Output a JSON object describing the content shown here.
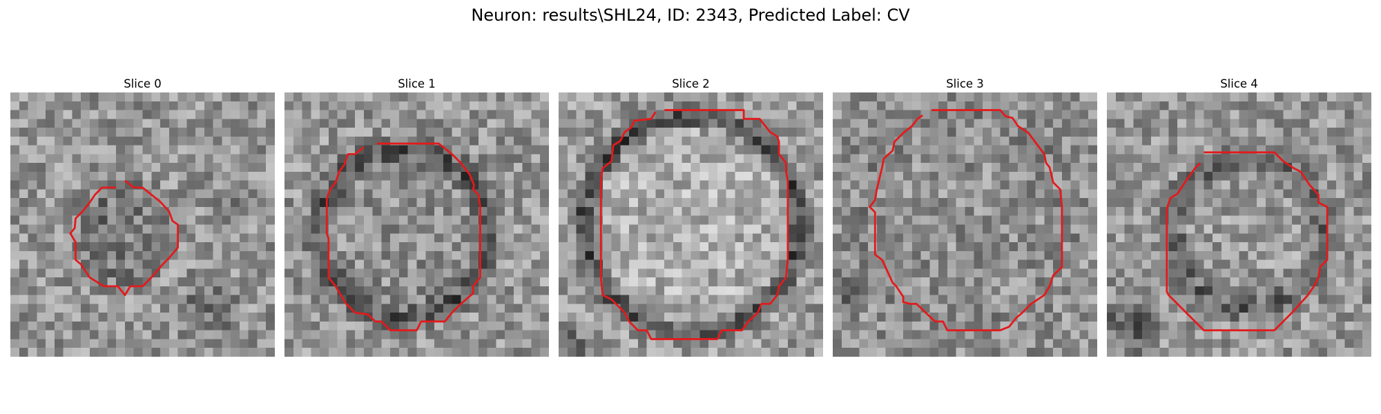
{
  "figure": {
    "title": "Neuron: results\\SHL24, ID: 2343, Predicted Label: CV",
    "contour_color": "#e31a1c",
    "colormap": "gray"
  },
  "panels": [
    {
      "title": "Slice 0"
    },
    {
      "title": "Slice 1"
    },
    {
      "title": "Slice 2"
    },
    {
      "title": "Slice 3"
    },
    {
      "title": "Slice 4"
    }
  ]
}
